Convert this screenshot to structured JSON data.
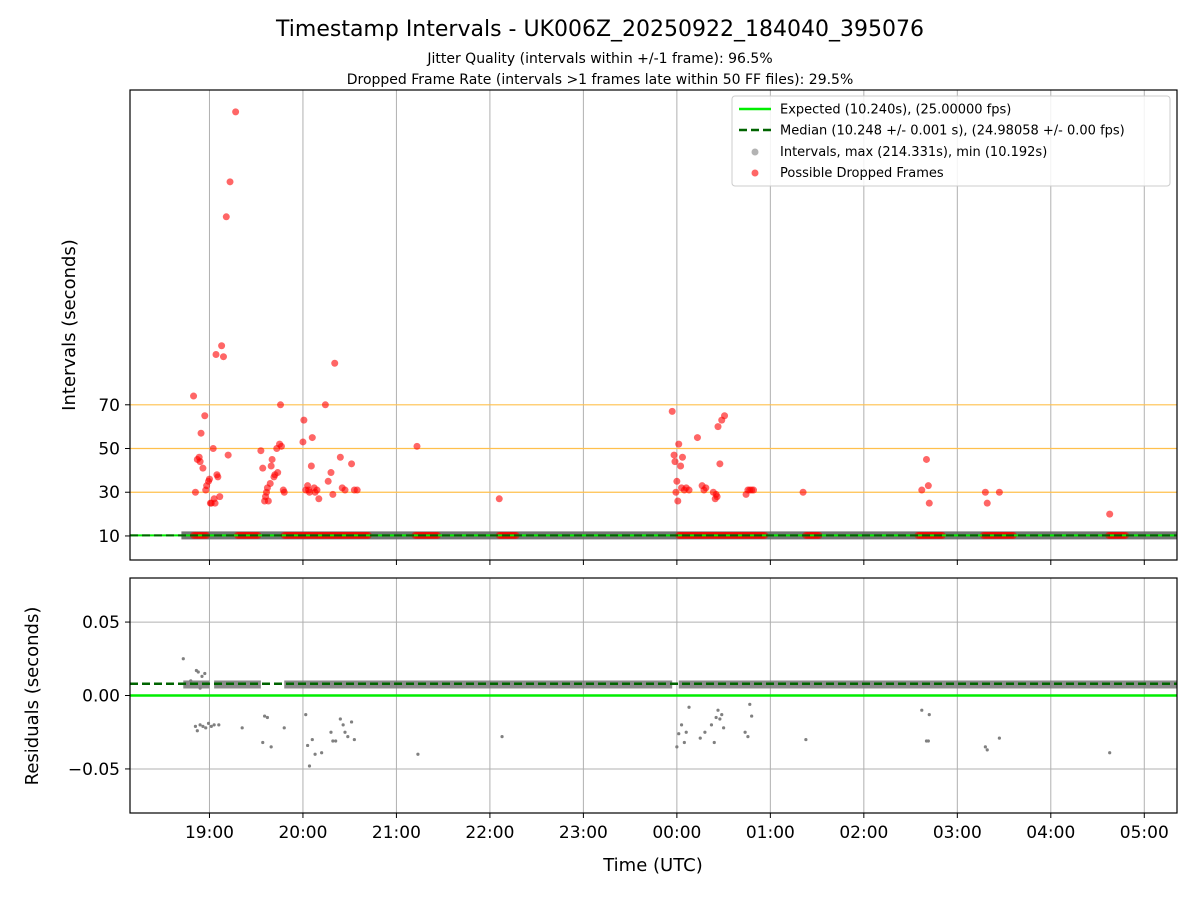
{
  "figure": {
    "title": "Timestamp Intervals - UK006Z_20250922_184040_395076",
    "subtitle_line1": "Jitter Quality (intervals within +/-1 frame): 96.5%",
    "subtitle_line2": "Dropped Frame Rate (intervals >1 frames late within 50 FF files): 29.5%",
    "xlabel": "Time (UTC)"
  },
  "chart_data": [
    {
      "type": "scatter",
      "panel": "top",
      "ylabel": "Intervals (seconds)",
      "y_ticks": [
        10,
        30,
        50,
        70
      ],
      "ylim": [
        -1,
        214
      ],
      "x_unit": "hours since 18:00 UTC",
      "xlim": [
        0.15,
        11.35
      ],
      "x_tick_labels": [
        "19:00",
        "20:00",
        "21:00",
        "22:00",
        "23:00",
        "00:00",
        "01:00",
        "02:00",
        "03:00",
        "04:00",
        "05:00"
      ],
      "x_tick_positions": [
        1,
        2,
        3,
        4,
        5,
        6,
        7,
        8,
        9,
        10,
        11
      ],
      "grid": true,
      "legend_position": "top-right",
      "reference_lines": [
        {
          "name": "Expected (10.240s), (25.00000 fps)",
          "y": 10.24,
          "color": "#00ee00",
          "style": "solid"
        },
        {
          "name": "Median (10.248 +/- 0.001 s), (24.98058 +/- 0.00 fps)",
          "y": 10.248,
          "color": "#006400",
          "style": "dashed"
        }
      ],
      "threshold_lines": {
        "values": [
          30,
          50,
          70
        ],
        "color": "#ffc04d"
      },
      "series": [
        {
          "name": "Intervals, max (214.331s), min (10.192s)",
          "color": "#808080",
          "band_x_range": [
            0.7,
            11.35
          ],
          "band_y": 10.25
        },
        {
          "name": "Possible Dropped Frames",
          "color": "#ff0000",
          "points": [
            [
              0.83,
              74
            ],
            [
              0.85,
              30
            ],
            [
              0.87,
              45
            ],
            [
              0.89,
              46
            ],
            [
              0.9,
              44
            ],
            [
              0.91,
              57
            ],
            [
              0.93,
              41
            ],
            [
              0.95,
              65
            ],
            [
              0.96,
              31
            ],
            [
              0.97,
              33
            ],
            [
              0.99,
              35
            ],
            [
              1.0,
              36
            ],
            [
              1.01,
              25
            ],
            [
              1.02,
              25
            ],
            [
              1.04,
              50
            ],
            [
              1.05,
              27
            ],
            [
              1.06,
              25
            ],
            [
              1.08,
              38
            ],
            [
              1.09,
              37
            ],
            [
              1.11,
              28
            ],
            [
              1.07,
              93
            ],
            [
              1.13,
              97
            ],
            [
              1.15,
              92
            ],
            [
              1.2,
              47
            ],
            [
              1.18,
              156
            ],
            [
              1.22,
              172
            ],
            [
              1.28,
              204
            ],
            [
              1.55,
              49
            ],
            [
              1.57,
              41
            ],
            [
              1.59,
              26
            ],
            [
              1.6,
              28
            ],
            [
              1.61,
              30
            ],
            [
              1.62,
              32
            ],
            [
              1.63,
              26
            ],
            [
              1.65,
              34
            ],
            [
              1.66,
              42
            ],
            [
              1.67,
              45
            ],
            [
              1.69,
              37
            ],
            [
              1.7,
              38
            ],
            [
              1.72,
              50
            ],
            [
              1.73,
              39
            ],
            [
              1.75,
              52
            ],
            [
              1.76,
              70
            ],
            [
              1.77,
              51
            ],
            [
              1.79,
              31
            ],
            [
              1.8,
              30
            ],
            [
              2.0,
              53
            ],
            [
              2.01,
              63
            ],
            [
              2.03,
              31
            ],
            [
              2.05,
              33
            ],
            [
              2.06,
              31
            ],
            [
              2.07,
              30
            ],
            [
              2.09,
              42
            ],
            [
              2.1,
              55
            ],
            [
              2.12,
              32
            ],
            [
              2.13,
              30
            ],
            [
              2.15,
              31
            ],
            [
              2.17,
              27
            ],
            [
              2.24,
              70
            ],
            [
              2.27,
              35
            ],
            [
              2.3,
              39
            ],
            [
              2.32,
              29
            ],
            [
              2.34,
              89
            ],
            [
              2.4,
              46
            ],
            [
              2.42,
              32
            ],
            [
              2.45,
              31
            ],
            [
              2.52,
              43
            ],
            [
              2.55,
              31
            ],
            [
              2.58,
              31
            ],
            [
              3.22,
              51
            ],
            [
              4.1,
              27
            ],
            [
              5.95,
              67
            ],
            [
              5.97,
              47
            ],
            [
              5.98,
              44
            ],
            [
              5.99,
              30
            ],
            [
              6.0,
              35
            ],
            [
              6.01,
              26
            ],
            [
              6.02,
              52
            ],
            [
              6.04,
              42
            ],
            [
              6.05,
              32
            ],
            [
              6.06,
              46
            ],
            [
              6.08,
              31
            ],
            [
              6.1,
              32
            ],
            [
              6.13,
              31
            ],
            [
              6.22,
              55
            ],
            [
              6.27,
              33
            ],
            [
              6.29,
              31
            ],
            [
              6.31,
              32
            ],
            [
              6.39,
              30
            ],
            [
              6.41,
              27
            ],
            [
              6.42,
              29
            ],
            [
              6.43,
              28
            ],
            [
              6.44,
              60
            ],
            [
              6.46,
              43
            ],
            [
              6.48,
              63
            ],
            [
              6.51,
              65
            ],
            [
              6.74,
              29
            ],
            [
              6.76,
              31
            ],
            [
              6.78,
              31
            ],
            [
              6.8,
              31
            ],
            [
              6.82,
              31
            ],
            [
              7.35,
              30
            ],
            [
              8.62,
              31
            ],
            [
              8.67,
              45
            ],
            [
              8.69,
              33
            ],
            [
              8.7,
              25
            ],
            [
              9.3,
              30
            ],
            [
              9.32,
              25
            ],
            [
              9.45,
              30
            ],
            [
              10.63,
              20
            ]
          ],
          "baseline_clusters_y": 10.25,
          "baseline_clusters_x": [
            [
              0.83,
              0.97
            ],
            [
              1.3,
              1.52
            ],
            [
              1.8,
              2.7
            ],
            [
              3.2,
              3.45
            ],
            [
              4.1,
              4.28
            ],
            [
              6.02,
              6.95
            ],
            [
              7.38,
              7.52
            ],
            [
              8.58,
              8.85
            ],
            [
              9.28,
              9.6
            ],
            [
              10.62,
              10.8
            ]
          ]
        }
      ]
    },
    {
      "type": "scatter",
      "panel": "bottom",
      "ylabel": "Residuals (seconds)",
      "y_tick_labels": [
        "0.05",
        "0.00",
        "−0.05"
      ],
      "y_ticks": [
        0.05,
        0.0,
        -0.05
      ],
      "ylim": [
        -0.08,
        0.08
      ],
      "xlim": [
        0.15,
        11.35
      ],
      "grid": true,
      "reference_lines": [
        {
          "name": "Expected",
          "y": 0.0,
          "color": "#00ee00",
          "style": "solid"
        },
        {
          "name": "Median",
          "y": 0.008,
          "color": "#006400",
          "style": "dashed"
        }
      ],
      "series": [
        {
          "name": "Residuals",
          "color": "#808080",
          "band_segments": [
            [
              0.72,
              1.0
            ],
            [
              1.05,
              1.55
            ],
            [
              1.8,
              5.95
            ],
            [
              6.02,
              11.35
            ]
          ],
          "band_y": 0.0075,
          "points": [
            [
              0.72,
              0.025
            ],
            [
              0.75,
              0.008
            ],
            [
              0.8,
              0.01
            ],
            [
              0.86,
              0.017
            ],
            [
              0.88,
              0.016
            ],
            [
              0.9,
              0.005
            ],
            [
              0.92,
              0.013
            ],
            [
              0.95,
              0.015
            ],
            [
              0.97,
              0.008
            ],
            [
              0.85,
              -0.021
            ],
            [
              0.87,
              -0.024
            ],
            [
              0.9,
              -0.02
            ],
            [
              0.93,
              -0.021
            ],
            [
              0.96,
              -0.022
            ],
            [
              0.99,
              -0.019
            ],
            [
              1.02,
              -0.021
            ],
            [
              1.05,
              -0.02
            ],
            [
              1.1,
              -0.02
            ],
            [
              1.35,
              -0.022
            ],
            [
              1.57,
              -0.032
            ],
            [
              1.59,
              -0.014
            ],
            [
              1.62,
              -0.015
            ],
            [
              1.66,
              -0.035
            ],
            [
              1.8,
              -0.022
            ],
            [
              2.03,
              -0.013
            ],
            [
              2.05,
              -0.034
            ],
            [
              2.07,
              -0.048
            ],
            [
              2.1,
              -0.03
            ],
            [
              2.13,
              -0.04
            ],
            [
              2.2,
              -0.039
            ],
            [
              2.3,
              -0.025
            ],
            [
              2.32,
              -0.031
            ],
            [
              2.35,
              -0.031
            ],
            [
              2.4,
              -0.016
            ],
            [
              2.43,
              -0.02
            ],
            [
              2.45,
              -0.025
            ],
            [
              2.48,
              -0.028
            ],
            [
              2.52,
              -0.018
            ],
            [
              2.55,
              -0.03
            ],
            [
              3.23,
              -0.04
            ],
            [
              4.13,
              -0.028
            ],
            [
              6.0,
              -0.035
            ],
            [
              6.02,
              -0.026
            ],
            [
              6.05,
              -0.02
            ],
            [
              6.08,
              -0.032
            ],
            [
              6.1,
              -0.025
            ],
            [
              6.13,
              -0.008
            ],
            [
              6.25,
              -0.029
            ],
            [
              6.3,
              -0.025
            ],
            [
              6.37,
              -0.02
            ],
            [
              6.4,
              -0.032
            ],
            [
              6.42,
              -0.015
            ],
            [
              6.44,
              -0.01
            ],
            [
              6.46,
              -0.016
            ],
            [
              6.48,
              -0.013
            ],
            [
              6.5,
              -0.022
            ],
            [
              6.73,
              -0.025
            ],
            [
              6.76,
              -0.028
            ],
            [
              6.78,
              -0.006
            ],
            [
              6.8,
              -0.014
            ],
            [
              7.38,
              -0.03
            ],
            [
              8.62,
              -0.01
            ],
            [
              8.67,
              -0.031
            ],
            [
              8.69,
              -0.031
            ],
            [
              8.7,
              -0.013
            ],
            [
              9.3,
              -0.035
            ],
            [
              9.32,
              -0.037
            ],
            [
              9.45,
              -0.029
            ],
            [
              10.63,
              -0.039
            ]
          ]
        }
      ]
    }
  ]
}
